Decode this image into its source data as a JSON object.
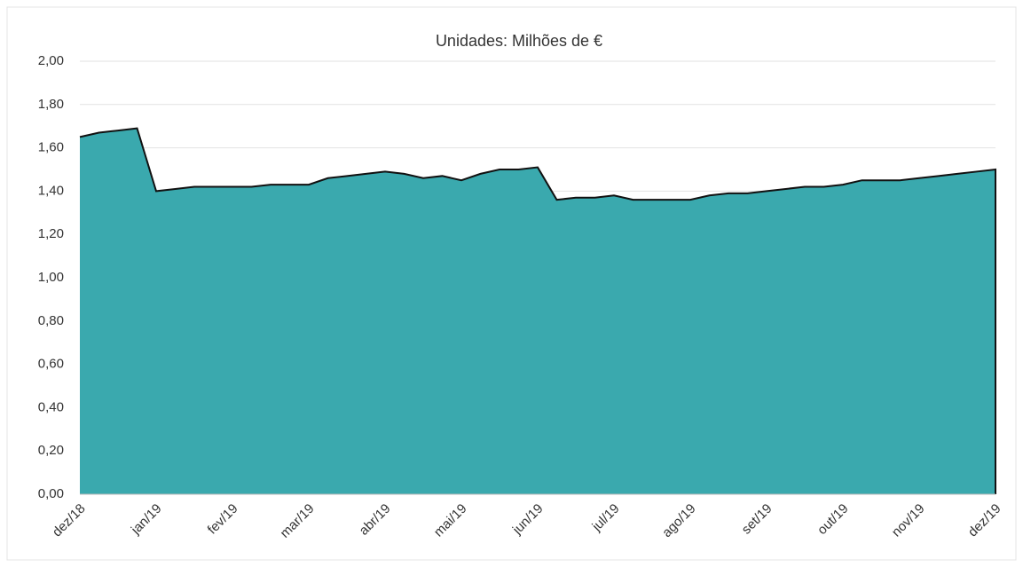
{
  "chart_data": {
    "type": "area",
    "title": "Unidades: Milhões de €",
    "categories": [
      "dez/18",
      null,
      null,
      null,
      "jan/19",
      null,
      null,
      null,
      "fev/19",
      null,
      null,
      null,
      "mar/19",
      null,
      null,
      null,
      "abr/19",
      null,
      null,
      null,
      "mai/19",
      null,
      null,
      null,
      "jun/19",
      null,
      null,
      null,
      "jul/19",
      null,
      null,
      null,
      "ago/19",
      null,
      null,
      null,
      "set/19",
      null,
      null,
      null,
      "out/19",
      null,
      null,
      null,
      "nov/19",
      null,
      null,
      null,
      "dez/19"
    ],
    "series": [
      {
        "color": "#3aa9ae",
        "values": [
          1.65,
          1.67,
          1.68,
          1.69,
          1.4,
          1.41,
          1.42,
          1.42,
          1.42,
          1.42,
          1.43,
          1.43,
          1.43,
          1.46,
          1.47,
          1.48,
          1.49,
          1.48,
          1.46,
          1.47,
          1.45,
          1.48,
          1.5,
          1.5,
          1.51,
          1.36,
          1.37,
          1.37,
          1.38,
          1.36,
          1.36,
          1.36,
          1.36,
          1.38,
          1.39,
          1.39,
          1.4,
          1.41,
          1.42,
          1.42,
          1.43,
          1.45,
          1.45,
          1.45,
          1.46,
          1.47,
          1.48,
          1.49,
          1.5
        ]
      }
    ],
    "ylim": [
      0,
      2
    ],
    "yticks": [
      {
        "value": 0,
        "label": "0,00"
      },
      {
        "value": 0.2,
        "label": "0,20"
      },
      {
        "value": 0.4,
        "label": "0,40"
      },
      {
        "value": 0.6,
        "label": "0,60"
      },
      {
        "value": 0.8,
        "label": "0,80"
      },
      {
        "value": 1,
        "label": "1,00"
      },
      {
        "value": 1.2,
        "label": "1,20"
      },
      {
        "value": 1.4,
        "label": "1,40"
      },
      {
        "value": 1.6,
        "label": "1,60"
      },
      {
        "value": 1.8,
        "label": "1,80"
      },
      {
        "value": 2,
        "label": "2,00"
      }
    ],
    "grid": true
  }
}
